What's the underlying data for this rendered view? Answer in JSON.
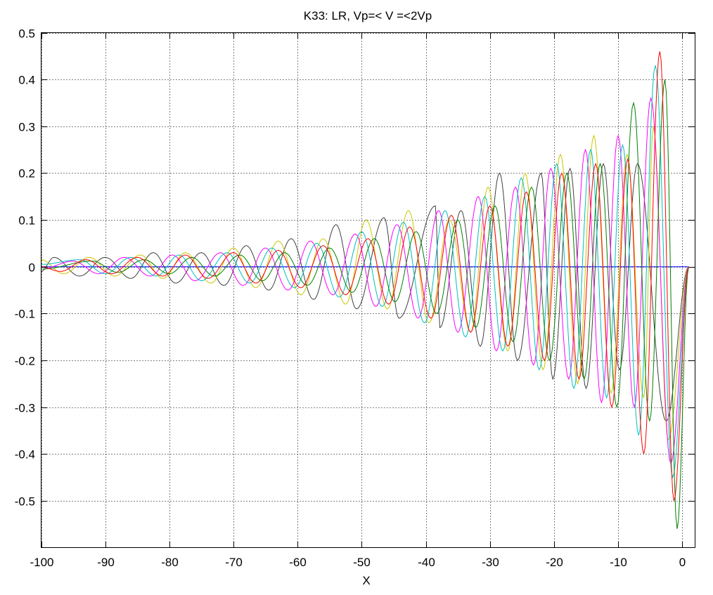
{
  "chart_data": {
    "type": "line",
    "title": "K33: LR, Vp=< V =<2Vp",
    "xlabel": "X",
    "ylabel": "",
    "xlim": [
      -100,
      2
    ],
    "ylim": [
      -0.6,
      0.5
    ],
    "grid": true,
    "xticks": [
      -100,
      -90,
      -80,
      -70,
      -60,
      -50,
      -40,
      -30,
      -20,
      -10,
      0
    ],
    "xtick_labels": [
      "-100",
      "-90",
      "-80",
      "-70",
      "-60",
      "-50",
      "-40",
      "-30",
      "-20",
      "-10",
      "0"
    ],
    "yticks": [
      0.5,
      0.4,
      0.3,
      0.2,
      0.1,
      0,
      -0.1,
      -0.2,
      -0.3,
      -0.4,
      -0.5
    ],
    "ytick_labels": [
      "0.5",
      "0.4",
      "0.3",
      "0.2",
      "0.1",
      "0",
      "-0.1",
      "-0.2",
      "-0.3",
      "-0.4",
      "-0.5"
    ],
    "series": [
      {
        "name": "blue",
        "color": "#0000ff",
        "points": [
          [
            -100,
            0
          ],
          [
            1,
            0
          ]
        ]
      },
      {
        "name": "black",
        "color": "#404040",
        "points": [
          [
            -100,
            -0.01
          ],
          [
            -98,
            0.02
          ],
          [
            -94,
            -0.02
          ],
          [
            -90,
            0.02
          ],
          [
            -86,
            -0.025
          ],
          [
            -82.5,
            0.03
          ],
          [
            -79,
            -0.035
          ],
          [
            -75,
            0.03
          ],
          [
            -71.5,
            -0.04
          ],
          [
            -68,
            0.045
          ],
          [
            -64.5,
            -0.05
          ],
          [
            -61,
            0.06
          ],
          [
            -57.5,
            -0.07
          ],
          [
            -54,
            0.09
          ],
          [
            -50.8,
            -0.09
          ],
          [
            -46.5,
            0.105
          ],
          [
            -44.2,
            -0.11
          ],
          [
            -38.5,
            0.13
          ],
          [
            -37.8,
            -0.13
          ],
          [
            -34.5,
            0.12
          ],
          [
            -31.5,
            -0.17
          ],
          [
            -28.5,
            0.2
          ],
          [
            -25.7,
            -0.2
          ],
          [
            -22,
            0.2
          ],
          [
            -20.2,
            -0.24
          ],
          [
            -17.5,
            0.21
          ],
          [
            -15,
            -0.26
          ],
          [
            -12.3,
            0.22
          ],
          [
            -9.8,
            -0.22
          ],
          [
            -7,
            0.22
          ],
          [
            -2.5,
            -0.33
          ],
          [
            1,
            0
          ]
        ]
      },
      {
        "name": "yellow",
        "color": "#c8c800",
        "points": [
          [
            -100,
            0.015
          ],
          [
            -96.5,
            -0.015
          ],
          [
            -92.5,
            0.02
          ],
          [
            -88.5,
            -0.02
          ],
          [
            -84.5,
            0.025
          ],
          [
            -81,
            -0.025
          ],
          [
            -77.5,
            0.03
          ],
          [
            -73.5,
            -0.035
          ],
          [
            -70,
            0.04
          ],
          [
            -66.5,
            -0.045
          ],
          [
            -63,
            0.055
          ],
          [
            -59.5,
            -0.06
          ],
          [
            -56,
            0.06
          ],
          [
            -52.5,
            -0.08
          ],
          [
            -49.3,
            0.1
          ],
          [
            -46,
            -0.09
          ],
          [
            -42.7,
            0.12
          ],
          [
            -39.5,
            -0.12
          ],
          [
            -36.3,
            0.1
          ],
          [
            -33,
            -0.14
          ],
          [
            -30.3,
            0.17
          ],
          [
            -27.2,
            -0.18
          ],
          [
            -24.5,
            0.2
          ],
          [
            -21.7,
            -0.22
          ],
          [
            -19,
            0.24
          ],
          [
            -16.3,
            -0.25
          ],
          [
            -13.8,
            0.28
          ],
          [
            -11.1,
            -0.27
          ],
          [
            -8.6,
            0.24
          ],
          [
            -6,
            -0.28
          ],
          [
            -4.5,
            0.3
          ],
          [
            -2.2,
            -0.37
          ],
          [
            1,
            0
          ]
        ]
      },
      {
        "name": "magenta",
        "color": "#ff00ff",
        "points": [
          [
            -100,
            -0.005
          ],
          [
            -95,
            0.012
          ],
          [
            -91,
            -0.015
          ],
          [
            -87,
            0.02
          ],
          [
            -83,
            -0.02
          ],
          [
            -79.5,
            0.025
          ],
          [
            -76,
            -0.03
          ],
          [
            -72,
            0.03
          ],
          [
            -68.5,
            -0.04
          ],
          [
            -65,
            0.04
          ],
          [
            -61.5,
            -0.05
          ],
          [
            -58,
            0.055
          ],
          [
            -54.5,
            -0.06
          ],
          [
            -51,
            0.07
          ],
          [
            -47.8,
            -0.085
          ],
          [
            -44.5,
            0.09
          ],
          [
            -41.2,
            -0.11
          ],
          [
            -38,
            0.12
          ],
          [
            -35,
            -0.14
          ],
          [
            -31.8,
            0.15
          ],
          [
            -29,
            -0.18
          ],
          [
            -26,
            0.17
          ],
          [
            -23.2,
            -0.21
          ],
          [
            -20.5,
            0.21
          ],
          [
            -17.7,
            -0.24
          ],
          [
            -15.1,
            0.25
          ],
          [
            -12.6,
            -0.29
          ],
          [
            -10,
            0.28
          ],
          [
            -7.5,
            -0.3
          ],
          [
            -4.9,
            0.36
          ],
          [
            -1.8,
            -0.42
          ],
          [
            1,
            0
          ]
        ]
      },
      {
        "name": "cyan",
        "color": "#00bfbf",
        "points": [
          [
            -100,
            0.005
          ],
          [
            -94,
            0.015
          ],
          [
            -90,
            -0.015
          ],
          [
            -86,
            0.02
          ],
          [
            -82,
            -0.02
          ],
          [
            -78.5,
            0.025
          ],
          [
            -75,
            -0.03
          ],
          [
            -71,
            0.03
          ],
          [
            -67.5,
            -0.035
          ],
          [
            -64,
            0.04
          ],
          [
            -60.5,
            -0.045
          ],
          [
            -57,
            0.05
          ],
          [
            -53.5,
            -0.065
          ],
          [
            -50,
            0.075
          ],
          [
            -46.8,
            -0.085
          ],
          [
            -43.5,
            0.095
          ],
          [
            -40.2,
            -0.12
          ],
          [
            -37,
            0.12
          ],
          [
            -33.8,
            -0.15
          ],
          [
            -30.8,
            0.15
          ],
          [
            -28,
            -0.18
          ],
          [
            -25.1,
            0.19
          ],
          [
            -22.3,
            -0.22
          ],
          [
            -19.6,
            0.22
          ],
          [
            -16.9,
            -0.26
          ],
          [
            -14.3,
            0.25
          ],
          [
            -11.8,
            -0.28
          ],
          [
            -9.3,
            0.26
          ],
          [
            -6.8,
            -0.36
          ],
          [
            -4.2,
            0.43
          ],
          [
            -1.5,
            -0.45
          ],
          [
            1,
            0
          ]
        ]
      },
      {
        "name": "green",
        "color": "#008000",
        "points": [
          [
            -100,
            -0.005
          ],
          [
            -92,
            0.012
          ],
          [
            -88,
            -0.012
          ],
          [
            -84,
            0.015
          ],
          [
            -80,
            -0.015
          ],
          [
            -76.5,
            0.02
          ],
          [
            -73,
            -0.02
          ],
          [
            -69,
            0.025
          ],
          [
            -65.5,
            -0.03
          ],
          [
            -62,
            0.03
          ],
          [
            -58.5,
            -0.04
          ],
          [
            -55,
            0.04
          ],
          [
            -51.5,
            -0.055
          ],
          [
            -48,
            0.06
          ],
          [
            -44.8,
            -0.075
          ],
          [
            -41.5,
            0.075
          ],
          [
            -38.3,
            -0.1
          ],
          [
            -35,
            0.1
          ],
          [
            -32.2,
            -0.13
          ],
          [
            -29.2,
            0.13
          ],
          [
            -26.4,
            -0.16
          ],
          [
            -23.5,
            0.17
          ],
          [
            -20.7,
            -0.2
          ],
          [
            -18,
            0.2
          ],
          [
            -15.3,
            -0.24
          ],
          [
            -12.8,
            0.22
          ],
          [
            -10.2,
            -0.3
          ],
          [
            -7.6,
            0.35
          ],
          [
            -5.1,
            -0.33
          ],
          [
            -2.7,
            0.4
          ],
          [
            -0.8,
            -0.56
          ],
          [
            1,
            0
          ]
        ]
      },
      {
        "name": "red",
        "color": "#ff0000",
        "points": [
          [
            -100,
            0
          ],
          [
            -97,
            -0.01
          ],
          [
            -93,
            0.015
          ],
          [
            -89,
            -0.015
          ],
          [
            -85,
            0.02
          ],
          [
            -81,
            -0.02
          ],
          [
            -77.5,
            0.025
          ],
          [
            -74,
            -0.025
          ],
          [
            -70,
            0.03
          ],
          [
            -66.5,
            -0.035
          ],
          [
            -63,
            0.035
          ],
          [
            -59.5,
            -0.045
          ],
          [
            -56,
            0.045
          ],
          [
            -52.5,
            -0.06
          ],
          [
            -49,
            0.06
          ],
          [
            -45.8,
            -0.08
          ],
          [
            -42.5,
            0.085
          ],
          [
            -39.2,
            -0.11
          ],
          [
            -36,
            0.11
          ],
          [
            -33,
            -0.14
          ],
          [
            -30,
            0.13
          ],
          [
            -27.2,
            -0.17
          ],
          [
            -24.3,
            0.16
          ],
          [
            -21.5,
            -0.2
          ],
          [
            -18.8,
            0.2
          ],
          [
            -16.1,
            -0.24
          ],
          [
            -13.5,
            0.22
          ],
          [
            -11,
            -0.3
          ],
          [
            -8.5,
            0.23
          ],
          [
            -6,
            -0.4
          ],
          [
            -3.5,
            0.46
          ],
          [
            -1.3,
            -0.5
          ],
          [
            1,
            0
          ]
        ]
      }
    ]
  }
}
